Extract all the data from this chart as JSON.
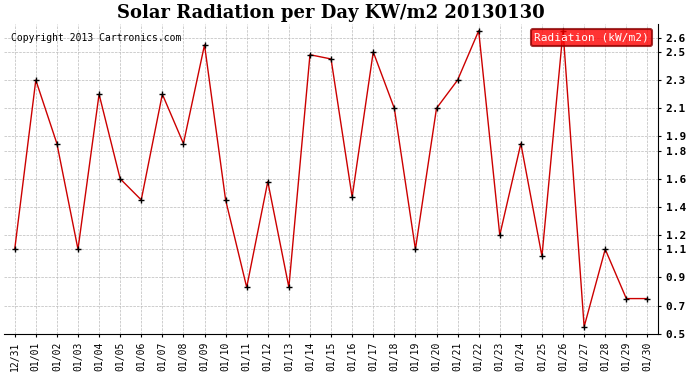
{
  "title": "Solar Radiation per Day KW/m2 20130130",
  "copyright": "Copyright 2013 Cartronics.com",
  "legend_label": "Radiation (kW/m2)",
  "dates": [
    "12/31",
    "01/01",
    "01/02",
    "01/03",
    "01/04",
    "01/05",
    "01/06",
    "01/07",
    "01/08",
    "01/09",
    "01/10",
    "01/11",
    "01/12",
    "01/13",
    "01/14",
    "01/15",
    "01/16",
    "01/17",
    "01/18",
    "01/19",
    "01/20",
    "01/21",
    "01/22",
    "01/23",
    "01/24",
    "01/25",
    "01/26",
    "01/27",
    "01/28",
    "01/29",
    "01/30"
  ],
  "values": [
    1.1,
    2.3,
    1.85,
    1.1,
    2.2,
    1.6,
    1.45,
    2.2,
    1.85,
    2.55,
    1.45,
    0.83,
    1.58,
    0.83,
    2.48,
    2.45,
    1.47,
    2.5,
    2.1,
    1.1,
    2.1,
    2.3,
    2.65,
    1.2,
    1.85,
    1.05,
    2.65,
    0.55,
    1.1,
    0.75,
    0.75
  ],
  "ylim": [
    0.5,
    2.7
  ],
  "yticks": [
    0.5,
    0.7,
    0.9,
    1.1,
    1.2,
    1.4,
    1.6,
    1.8,
    1.9,
    2.1,
    2.3,
    2.5,
    2.6
  ],
  "ytick_labels": [
    "0.5",
    "0.7",
    "0.9",
    "1.1",
    "1.2",
    "1.4",
    "1.6",
    "1.8",
    "1.9",
    "2.1",
    "2.3",
    "2.5",
    "2.6"
  ],
  "line_color": "#cc0000",
  "marker_color": "#000000",
  "bg_color": "#ffffff",
  "grid_color": "#bbbbbb",
  "title_fontsize": 13,
  "copyright_fontsize": 7,
  "tick_fontsize": 7,
  "legend_fontsize": 8
}
